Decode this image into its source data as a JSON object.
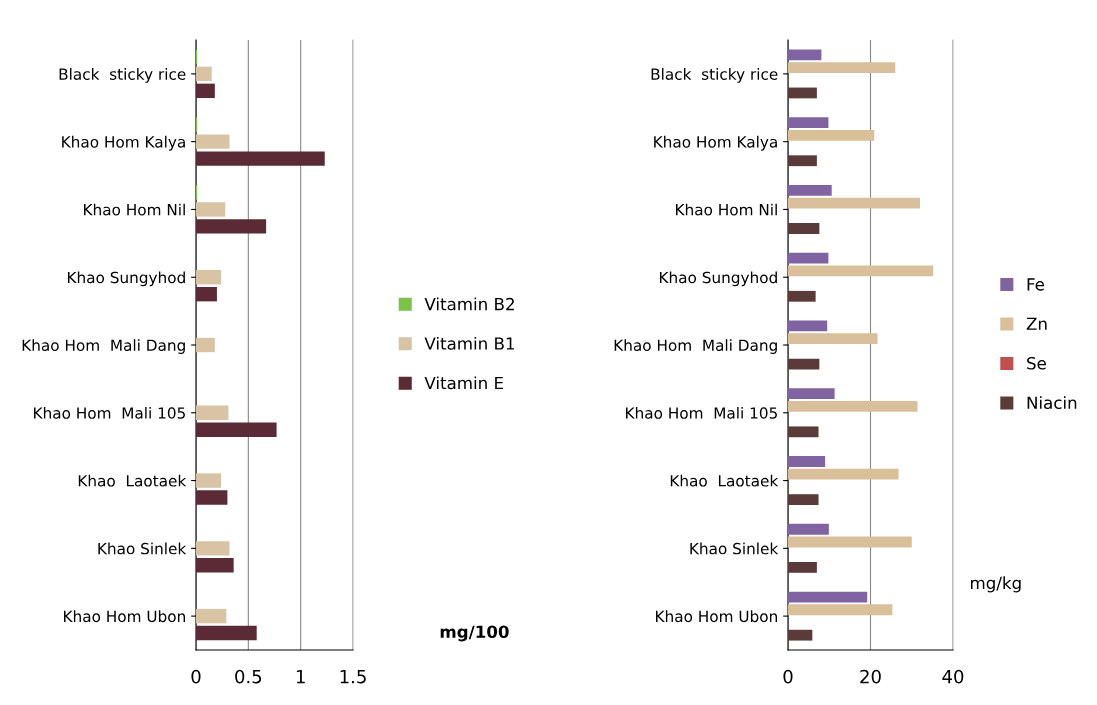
{
  "chart_data": [
    {
      "type": "bar",
      "orientation": "horizontal",
      "categories": [
        "Black  sticky rice",
        "Khao Hom Kalya",
        "Khao Hom Nil",
        "Khao Sungyhod",
        "Khao Hom  Mali Dang",
        "Khao Hom  Mali 105",
        "Khao  Laotaek",
        "Khao Sinlek",
        "Khao Hom Ubon"
      ],
      "series": [
        {
          "name": "Vitamin B2",
          "color": "#7cc24a",
          "values": [
            0.01,
            0.01,
            0.01,
            null,
            null,
            null,
            null,
            null,
            null
          ]
        },
        {
          "name": "Vitamin B1",
          "color": "#d8c3a5",
          "values": [
            0.15,
            0.32,
            0.28,
            0.24,
            0.18,
            0.31,
            0.24,
            0.32,
            0.29
          ]
        },
        {
          "name": "Vitamin E",
          "color": "#5a2a36",
          "values": [
            0.18,
            1.23,
            0.67,
            0.2,
            null,
            0.77,
            0.3,
            0.36,
            0.58
          ]
        }
      ],
      "xlim": [
        0,
        1.5
      ],
      "xticks": [
        0,
        0.5,
        1,
        1.5
      ],
      "grid": "x",
      "legend": "right",
      "annotations": [
        "mg/100"
      ]
    },
    {
      "type": "bar",
      "orientation": "horizontal",
      "categories": [
        "Black  sticky rice",
        "Khao Hom Kalya",
        "Khao Hom Nil",
        "Khao Sungyhod",
        "Khao Hom  Mali Dang",
        "Khao Hom  Mali 105",
        "Khao  Laotaek",
        "Khao Sinlek",
        "Khao Hom Ubon"
      ],
      "series": [
        {
          "name": "Fe",
          "color": "#8064a2",
          "values": [
            8.1,
            9.8,
            10.6,
            9.8,
            9.5,
            11.3,
            9.0,
            9.9,
            19.2
          ]
        },
        {
          "name": "Zn",
          "color": "#d9bf9a",
          "values": [
            26.0,
            20.9,
            32.0,
            35.2,
            21.7,
            31.4,
            26.8,
            30.0,
            25.3
          ]
        },
        {
          "name": "Se",
          "color": "#c0504d",
          "values": [
            null,
            null,
            null,
            null,
            null,
            null,
            null,
            null,
            null
          ]
        },
        {
          "name": "Niacin",
          "color": "#5b3a3a",
          "values": [
            7.0,
            7.0,
            7.6,
            6.7,
            7.6,
            7.4,
            7.4,
            7.0,
            5.9
          ]
        }
      ],
      "xlim": [
        0,
        40
      ],
      "xticks": [
        0,
        20,
        40
      ],
      "grid": "x",
      "legend": "right",
      "annotations": [
        "mg/kg"
      ]
    }
  ]
}
